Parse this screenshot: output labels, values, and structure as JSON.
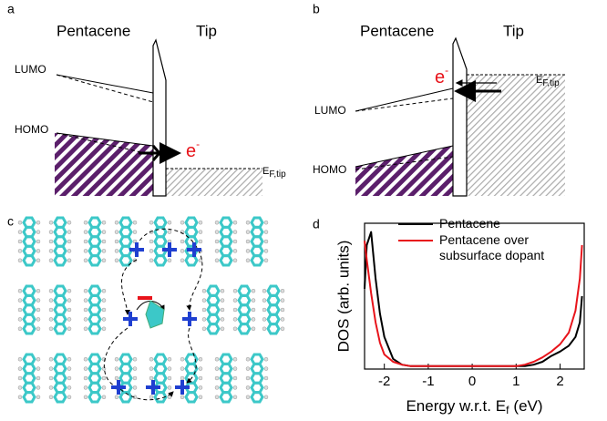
{
  "panel_a": {
    "label": "a",
    "left": "Pentacene",
    "right": "Tip",
    "lumo": "LUMO",
    "homo": "HOMO",
    "electron": "e",
    "electron_sup": "-",
    "fermi": "E",
    "fermi_sub": "F,tip"
  },
  "panel_b": {
    "label": "b",
    "left": "Pentacene",
    "right": "Tip",
    "lumo": "LUMO",
    "homo": "HOMO",
    "electron": "e",
    "electron_sup": "-",
    "fermi": "E",
    "fermi_sub": "F,tip"
  },
  "panel_c": {
    "label": "c"
  },
  "chart_data": {
    "type": "line",
    "panel_label": "d",
    "ylabel": "DOS (arb. units)",
    "xlabel_parts": [
      "Energy w.r.t. E",
      "f",
      "(eV)"
    ],
    "xlim": [
      -2.45,
      2.55
    ],
    "xticks": [
      -2,
      -1,
      0,
      1,
      2
    ],
    "ylim": [
      0,
      1
    ],
    "legend": "top",
    "x": [
      -2.45,
      -2.4,
      -2.3,
      -2.2,
      -2.1,
      -2.0,
      -1.8,
      -1.6,
      -1.4,
      -1,
      0,
      1,
      1.2,
      1.4,
      1.6,
      1.8,
      2.0,
      2.2,
      2.35,
      2.45,
      2.5
    ],
    "series": [
      {
        "name": "Pentacene",
        "color": "#000000",
        "values": [
          0.55,
          0.85,
          0.94,
          0.62,
          0.38,
          0.22,
          0.07,
          0.03,
          0.02,
          0.02,
          0.02,
          0.02,
          0.02,
          0.03,
          0.05,
          0.09,
          0.12,
          0.16,
          0.22,
          0.32,
          0.5
        ]
      },
      {
        "name": "Pentacene over subsurface dopant",
        "color": "#e8141b",
        "values": [
          0.88,
          0.75,
          0.52,
          0.32,
          0.18,
          0.1,
          0.05,
          0.03,
          0.02,
          0.02,
          0.02,
          0.02,
          0.03,
          0.05,
          0.08,
          0.12,
          0.17,
          0.25,
          0.4,
          0.62,
          0.85
        ]
      }
    ]
  }
}
